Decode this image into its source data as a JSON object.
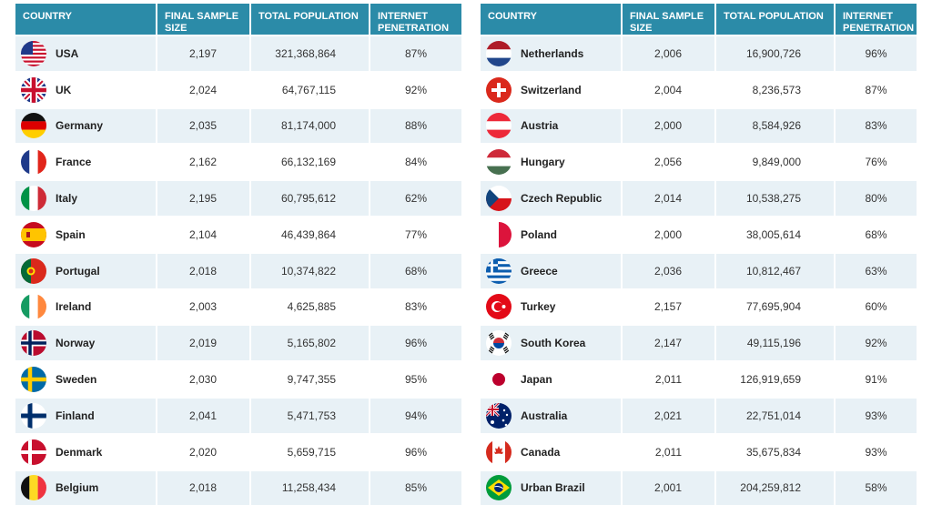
{
  "headers": {
    "country": "COUNTRY",
    "sample": "FINAL SAMPLE SIZE",
    "population": "TOTAL POPULATION",
    "internet": "INTERNET PENETRATION"
  },
  "left_rows": [
    {
      "country": "USA",
      "flag": "usa-flag-icon",
      "sample": "2,197",
      "population": "321,368,864",
      "internet": "87%"
    },
    {
      "country": "UK",
      "flag": "uk-flag-icon",
      "sample": "2,024",
      "population": "64,767,115",
      "internet": "92%"
    },
    {
      "country": "Germany",
      "flag": "germany-flag-icon",
      "sample": "2,035",
      "population": "81,174,000",
      "internet": "88%"
    },
    {
      "country": "France",
      "flag": "france-flag-icon",
      "sample": "2,162",
      "population": "66,132,169",
      "internet": "84%"
    },
    {
      "country": "Italy",
      "flag": "italy-flag-icon",
      "sample": "2,195",
      "population": "60,795,612",
      "internet": "62%"
    },
    {
      "country": "Spain",
      "flag": "spain-flag-icon",
      "sample": "2,104",
      "population": "46,439,864",
      "internet": "77%"
    },
    {
      "country": "Portugal",
      "flag": "portugal-flag-icon",
      "sample": "2,018",
      "population": "10,374,822",
      "internet": "68%"
    },
    {
      "country": "Ireland",
      "flag": "ireland-flag-icon",
      "sample": "2,003",
      "population": "4,625,885",
      "internet": "83%"
    },
    {
      "country": "Norway",
      "flag": "norway-flag-icon",
      "sample": "2,019",
      "population": "5,165,802",
      "internet": "96%"
    },
    {
      "country": "Sweden",
      "flag": "sweden-flag-icon",
      "sample": "2,030",
      "population": "9,747,355",
      "internet": "95%"
    },
    {
      "country": "Finland",
      "flag": "finland-flag-icon",
      "sample": "2,041",
      "population": "5,471,753",
      "internet": "94%"
    },
    {
      "country": "Denmark",
      "flag": "denmark-flag-icon",
      "sample": "2,020",
      "population": "5,659,715",
      "internet": "96%"
    },
    {
      "country": "Belgium",
      "flag": "belgium-flag-icon",
      "sample": "2,018",
      "population": "11,258,434",
      "internet": "85%"
    }
  ],
  "right_rows": [
    {
      "country": "Netherlands",
      "flag": "netherlands-flag-icon",
      "sample": "2,006",
      "population": "16,900,726",
      "internet": "96%"
    },
    {
      "country": "Switzerland",
      "flag": "switzerland-flag-icon",
      "sample": "2,004",
      "population": "8,236,573",
      "internet": "87%"
    },
    {
      "country": "Austria",
      "flag": "austria-flag-icon",
      "sample": "2,000",
      "population": "8,584,926",
      "internet": "83%"
    },
    {
      "country": "Hungary",
      "flag": "hungary-flag-icon",
      "sample": "2,056",
      "population": "9,849,000",
      "internet": "76%"
    },
    {
      "country": "Czech Republic",
      "flag": "czech-flag-icon",
      "sample": "2,014",
      "population": "10,538,275",
      "internet": "80%"
    },
    {
      "country": "Poland",
      "flag": "poland-flag-icon",
      "sample": "2,000",
      "population": "38,005,614",
      "internet": "68%"
    },
    {
      "country": "Greece",
      "flag": "greece-flag-icon",
      "sample": "2,036",
      "population": "10,812,467",
      "internet": "63%"
    },
    {
      "country": "Turkey",
      "flag": "turkey-flag-icon",
      "sample": "2,157",
      "population": "77,695,904",
      "internet": "60%"
    },
    {
      "country": "South Korea",
      "flag": "south-korea-flag-icon",
      "sample": "2,147",
      "population": "49,115,196",
      "internet": "92%"
    },
    {
      "country": "Japan",
      "flag": "japan-flag-icon",
      "sample": "2,011",
      "population": "126,919,659",
      "internet": "91%"
    },
    {
      "country": "Australia",
      "flag": "australia-flag-icon",
      "sample": "2,021",
      "population": "22,751,014",
      "internet": "93%"
    },
    {
      "country": "Canada",
      "flag": "canada-flag-icon",
      "sample": "2,011",
      "population": "35,675,834",
      "internet": "93%"
    },
    {
      "country": "Urban Brazil",
      "flag": "brazil-flag-icon",
      "sample": "2,001",
      "population": "204,259,812",
      "internet": "58%"
    }
  ],
  "colors": {
    "header_bg": "#2b8ba8",
    "row_alt_bg": "#e8f1f6",
    "text": "#333333"
  }
}
